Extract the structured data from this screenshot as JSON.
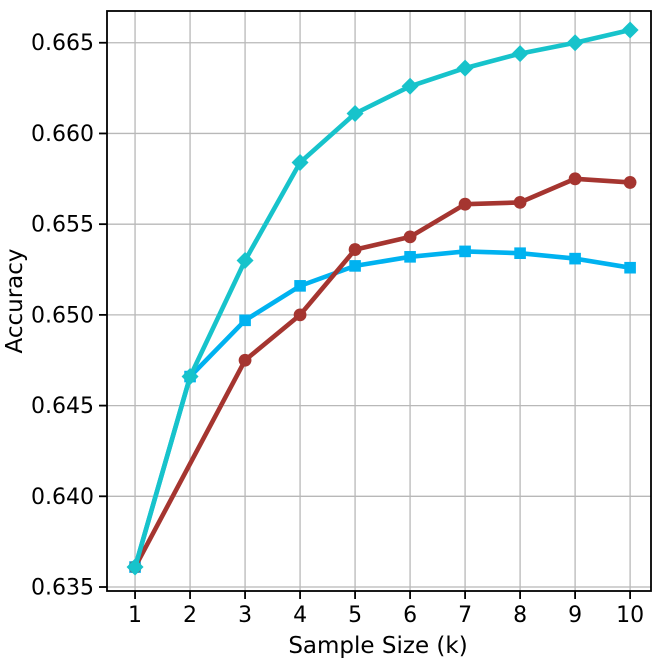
{
  "figure": {
    "background": "#ffffff"
  },
  "chart_data": {
    "type": "line",
    "title": "",
    "xlabel": "Sample Size (k)",
    "ylabel": "Accuracy",
    "x_tick_labels": [
      "1",
      "2",
      "3",
      "4",
      "5",
      "6",
      "7",
      "8",
      "9",
      "10"
    ],
    "x_ticks": [
      1,
      2,
      3,
      4,
      5,
      6,
      7,
      8,
      9,
      10
    ],
    "y_tick_labels": [
      "0.635",
      "0.640",
      "0.645",
      "0.650",
      "0.655",
      "0.660",
      "0.665"
    ],
    "y_ticks": [
      0.635,
      0.64,
      0.645,
      0.65,
      0.655,
      0.66,
      0.665
    ],
    "xlim": [
      0.49,
      10.38
    ],
    "ylim": [
      0.63478,
      0.66675
    ],
    "grid": true,
    "grid_color": "#b8b8b8",
    "legend": "none",
    "series": [
      {
        "name": "light-blue-squares",
        "color": "#00b2f0",
        "marker": "square",
        "x": [
          1,
          2,
          3,
          4,
          5,
          6,
          7,
          8,
          9,
          10
        ],
        "y": [
          0.6361,
          0.6466,
          0.6497,
          0.6516,
          0.6527,
          0.6532,
          0.6535,
          0.6534,
          0.6531,
          0.6526
        ]
      },
      {
        "name": "dark-red-circles",
        "color": "#a53530",
        "marker": "circle",
        "x": [
          1,
          3,
          4,
          5,
          6,
          7,
          8,
          9,
          10
        ],
        "y": [
          0.6361,
          0.6475,
          0.65,
          0.6536,
          0.6543,
          0.6561,
          0.6562,
          0.6575,
          0.6573
        ]
      },
      {
        "name": "teal-diamonds",
        "color": "#17c3cb",
        "marker": "diamond",
        "x": [
          1,
          2,
          3,
          4,
          5,
          6,
          7,
          8,
          9,
          10
        ],
        "y": [
          0.6361,
          0.6466,
          0.653,
          0.6584,
          0.6611,
          0.6626,
          0.6636,
          0.6644,
          0.665,
          0.6657
        ]
      }
    ]
  }
}
